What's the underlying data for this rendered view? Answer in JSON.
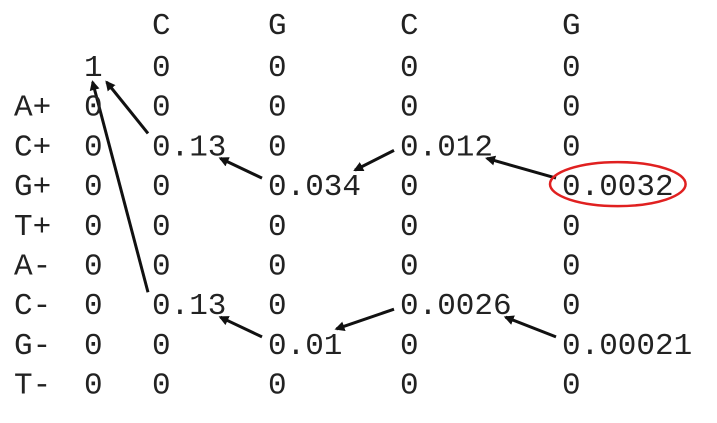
{
  "columns": [
    "C",
    "G",
    "C",
    "G"
  ],
  "rows": [
    {
      "label": "𝒝",
      "values": [
        "1",
        "0",
        "0",
        "0",
        "0"
      ]
    },
    {
      "label": "A+",
      "values": [
        "0",
        "0",
        "0",
        "0",
        "0"
      ]
    },
    {
      "label": "C+",
      "values": [
        "0",
        "0.13",
        "0",
        "0.012",
        "0"
      ]
    },
    {
      "label": "G+",
      "values": [
        "0",
        "0",
        "0.034",
        "0",
        "0.0032"
      ]
    },
    {
      "label": "T+",
      "values": [
        "0",
        "0",
        "0",
        "0",
        "0"
      ]
    },
    {
      "label": "A-",
      "values": [
        "0",
        "0",
        "0",
        "0",
        "0"
      ]
    },
    {
      "label": "C-",
      "values": [
        "0",
        "0.13",
        "0",
        "0.0026",
        "0"
      ]
    },
    {
      "label": "G-",
      "values": [
        "0",
        "0",
        "0.01",
        "0",
        "0.00021"
      ]
    },
    {
      "label": "T-",
      "values": [
        "0",
        "0",
        "0",
        "0",
        "0"
      ]
    }
  ],
  "highlight": {
    "row": 3,
    "col": 4,
    "color": "#e02020"
  },
  "arrows": [
    {
      "from": [
        2,
        1
      ],
      "to": [
        0,
        0
      ]
    },
    {
      "from": [
        6,
        1
      ],
      "to": [
        0,
        0
      ]
    },
    {
      "from": [
        3,
        2
      ],
      "to": [
        2,
        1
      ]
    },
    {
      "from": [
        2,
        3
      ],
      "to": [
        3,
        2
      ]
    },
    {
      "from": [
        3,
        4
      ],
      "to": [
        2,
        3
      ]
    },
    {
      "from": [
        7,
        2
      ],
      "to": [
        6,
        1
      ]
    },
    {
      "from": [
        6,
        3
      ],
      "to": [
        7,
        2
      ]
    },
    {
      "from": [
        7,
        4
      ],
      "to": [
        6,
        3
      ]
    }
  ]
}
